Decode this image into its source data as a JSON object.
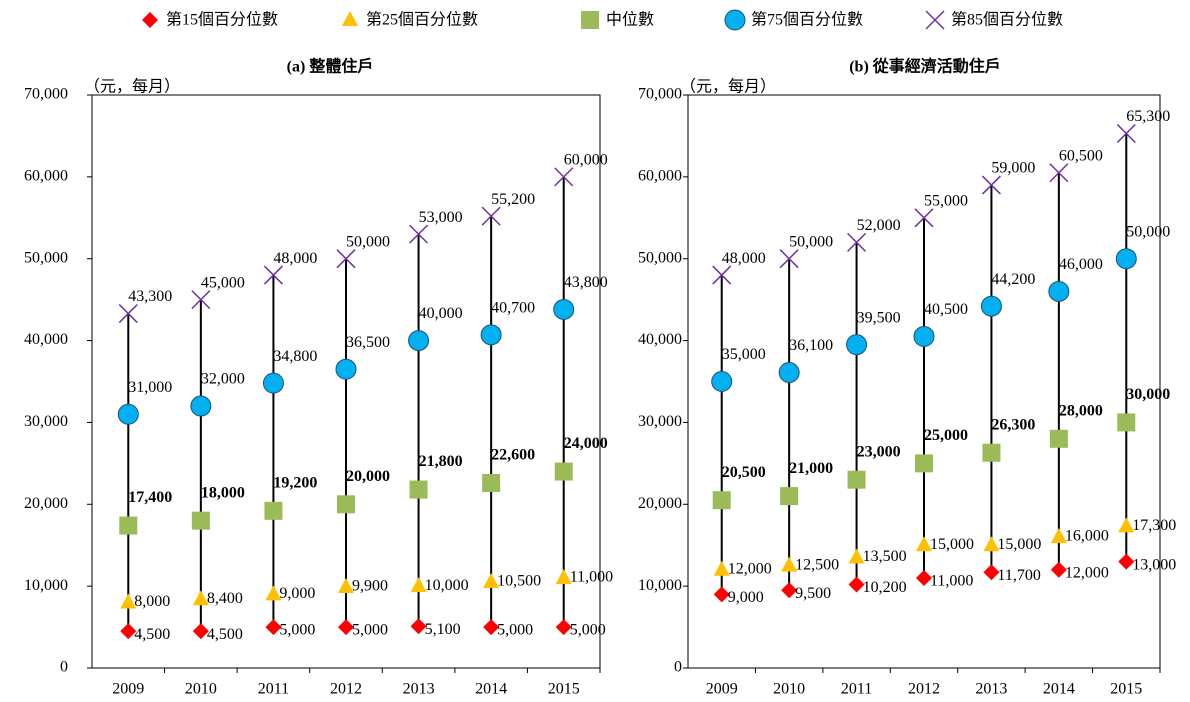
{
  "legend_series_note_free": null,
  "chart_data": [
    {
      "type": "range-line",
      "title": "(a) 整體住戶",
      "ylabel": "（元，每月）",
      "categories": [
        "2009",
        "2010",
        "2011",
        "2012",
        "2013",
        "2014",
        "2015"
      ],
      "ylim": [
        0,
        70000
      ],
      "yticks": [
        0,
        {
          "value": 10000,
          "label": "10,000"
        },
        {
          "value": 20000,
          "label": "20,000"
        },
        {
          "value": 30000,
          "label": "30,000"
        },
        {
          "value": 40000,
          "label": "40,000"
        },
        {
          "value": 50000,
          "label": "50,000"
        },
        {
          "value": 60000,
          "label": "60,000"
        },
        {
          "value": 70000,
          "label": "70,000"
        }
      ],
      "series": [
        {
          "name": "第15個百分位數",
          "color": "#ff0000",
          "marker": "diamond",
          "values": [
            4500,
            4500,
            5000,
            5000,
            5100,
            5000,
            5000
          ],
          "value_labels": [
            "4,500",
            "4,500",
            "5,000",
            "5,000",
            "5,100",
            "5,000",
            "5,000"
          ]
        },
        {
          "name": "第25個百分位數",
          "color": "#ffc000",
          "marker": "triangle",
          "values": [
            8000,
            8400,
            9000,
            9900,
            10000,
            10500,
            11000
          ],
          "value_labels": [
            "8,000",
            "8,400",
            "9,000",
            "9,900",
            "10,000",
            "10,500",
            "11,000"
          ]
        },
        {
          "name": "中位數",
          "color": "#9bbb59",
          "marker": "square",
          "values": [
            17400,
            18000,
            19200,
            20000,
            21800,
            22600,
            24000
          ],
          "value_labels": [
            "17,400",
            "18,000",
            "19,200",
            "20,000",
            "21,800",
            "22,600",
            "24,000"
          ]
        },
        {
          "name": "第75個百分位數",
          "color": "#00b0f0",
          "marker": "circle",
          "values": [
            31000,
            32000,
            34800,
            36500,
            40000,
            40700,
            43800
          ],
          "value_labels": [
            "31,000",
            "32,000",
            "34,800",
            "36,500",
            "40,000",
            "40,700",
            "43,800"
          ]
        },
        {
          "name": "第85個百分位數",
          "color": "#7030a0",
          "marker": "x",
          "values": [
            43300,
            45000,
            48000,
            50000,
            53000,
            55200,
            60000
          ],
          "value_labels": [
            "43,300",
            "45,000",
            "48,000",
            "50,000",
            "53,000",
            "55,200",
            "60,000"
          ]
        }
      ]
    },
    {
      "type": "range-line",
      "title": "(b) 從事經濟活動住戶",
      "ylabel": "（元，每月）",
      "categories": [
        "2009",
        "2010",
        "2011",
        "2012",
        "2013",
        "2014",
        "2015"
      ],
      "ylim": [
        0,
        70000
      ],
      "yticks": [
        0,
        {
          "value": 10000,
          "label": "10,000"
        },
        {
          "value": 20000,
          "label": "20,000"
        },
        {
          "value": 30000,
          "label": "30,000"
        },
        {
          "value": 40000,
          "label": "40,000"
        },
        {
          "value": 50000,
          "label": "50,000"
        },
        {
          "value": 60000,
          "label": "60,000"
        },
        {
          "value": 70000,
          "label": "70,000"
        }
      ],
      "series": [
        {
          "name": "第15個百分位數",
          "color": "#ff0000",
          "marker": "diamond",
          "values": [
            9000,
            9500,
            10200,
            11000,
            11700,
            12000,
            13000
          ],
          "value_labels": [
            "9,000",
            "9,500",
            "10,200",
            "11,000",
            "11,700",
            "12,000",
            "13,000"
          ]
        },
        {
          "name": "第25個百分位數",
          "color": "#ffc000",
          "marker": "triangle",
          "values": [
            12000,
            12500,
            13500,
            15000,
            15000,
            16000,
            17300
          ],
          "value_labels": [
            "12,000",
            "12,500",
            "13,500",
            "15,000",
            "15,000",
            "16,000",
            "17,300"
          ]
        },
        {
          "name": "中位數",
          "color": "#9bbb59",
          "marker": "square",
          "values": [
            20500,
            21000,
            23000,
            25000,
            26300,
            28000,
            30000
          ],
          "value_labels": [
            "20,500",
            "21,000",
            "23,000",
            "25,000",
            "26,300",
            "28,000",
            "30,000"
          ]
        },
        {
          "name": "第75個百分位數",
          "color": "#00b0f0",
          "marker": "circle",
          "values": [
            35000,
            36100,
            39500,
            40500,
            44200,
            46000,
            50000
          ],
          "value_labels": [
            "35,000",
            "36,100",
            "39,500",
            "40,500",
            "44,200",
            "46,000",
            "50,000"
          ]
        },
        {
          "name": "第85個百分位數",
          "color": "#7030a0",
          "marker": "x",
          "values": [
            48000,
            50000,
            52000,
            55000,
            59000,
            60500,
            65300
          ],
          "value_labels": [
            "48,000",
            "50,000",
            "52,000",
            "55,000",
            "59,000",
            "60,500",
            "65,300"
          ]
        }
      ]
    }
  ]
}
